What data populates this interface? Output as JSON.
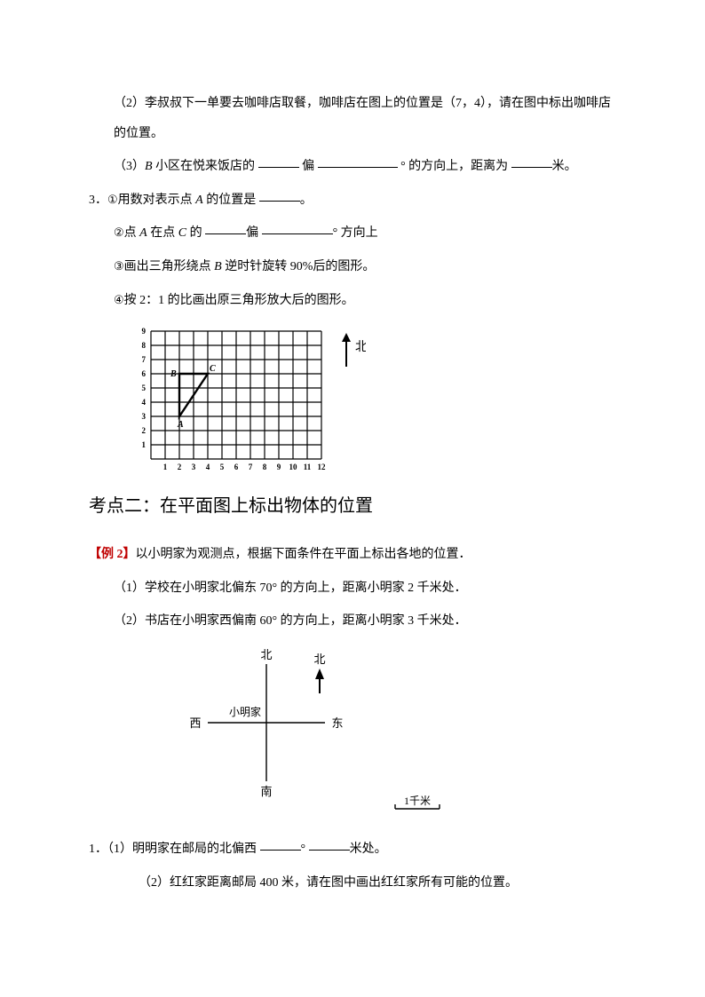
{
  "q2": {
    "part2": "（2）李叔叔下一单要去咖啡店取餐，咖啡店在图上的位置是（7，4），请在图中标出咖啡店的位置。",
    "part3_a": "（3）",
    "part3_b": "B",
    "part3_c": " 小区在悦来饭店的 ",
    "part3_d": "偏 ",
    "part3_e": "° 的方向上，距离为 ",
    "part3_f": "米。"
  },
  "q3": {
    "head": "3．",
    "l1a": "用数对表示点 ",
    "l1b": "A",
    "l1c": " 的位置是 ",
    "l1d": "。",
    "l2a": "点 ",
    "l2b": "A",
    "l2c": " 在点 ",
    "l2d": "C",
    "l2e": " 的 ",
    "l2f": "偏 ",
    "l2g": "° 方向上",
    "l3a": "画出三角形绕点 ",
    "l3b": "B",
    "l3c": " 逆时针旋转 90%后的图形。",
    "l4": "按 2：1 的比画出原三角形放大后的图形。",
    "circled": {
      "n1": "①",
      "n2": "②",
      "n3": "③",
      "n4": "④"
    }
  },
  "grid": {
    "north": "北",
    "xTicks": [
      "1",
      "2",
      "3",
      "4",
      "5",
      "6",
      "7",
      "8",
      "9",
      "10",
      "11",
      "12"
    ],
    "yTicks": [
      "1",
      "2",
      "3",
      "4",
      "5",
      "6",
      "7",
      "8",
      "9"
    ],
    "points": {
      "A": "A",
      "B": "B",
      "C": "C"
    },
    "triangle": {
      "A": [
        2,
        3
      ],
      "B": [
        2,
        6
      ],
      "C": [
        4,
        6
      ]
    },
    "cellSize": 16,
    "styles": {
      "gridFill": "#ffffff",
      "gridStroke": "#000000",
      "gridStrokeWidth": 1.2,
      "triangleStroke": "#000000",
      "triangleStrokeWidth": 2.4,
      "labelFontSize": 9
    }
  },
  "section2": {
    "title": "考点二：在平面图上标出物体的位置"
  },
  "ex2": {
    "label": "【例 2】",
    "intro": "以小明家为观测点，根据下面条件在平面上标出各地的位置．",
    "l1": "（1）学校在小明家北偏东 70° 的方向上，距离小明家 2 千米处．",
    "l2": "（2）书店在小明家西偏南 60° 的方向上，距离小明家 3 千米处．"
  },
  "compass": {
    "north": "北",
    "south": "南",
    "east": "东",
    "west": "西",
    "home": "小明家",
    "north2": "北",
    "scaleLabel": "1千米",
    "styles": {
      "stroke": "#000000",
      "strokeWidth": 1.4,
      "fontSize": 13
    }
  },
  "q1b": {
    "head": "1．",
    "l1a": "（1）明明家在邮局的北偏西 ",
    "l1b": "° ",
    "l1c": "米处。",
    "l2": "（2）红红家距离邮局 400 米，请在图中画出红红家所有可能的位置。"
  },
  "blanks": {
    "w40": 46,
    "w60": 66,
    "w80": 90
  }
}
